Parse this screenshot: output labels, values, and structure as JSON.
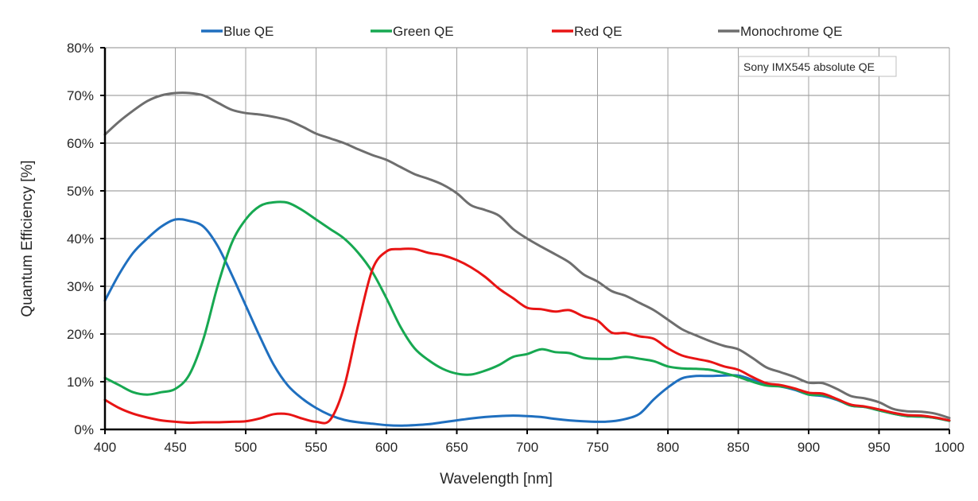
{
  "chart_data": {
    "type": "line",
    "title": "",
    "annotation": "Sony IMX545 absolute QE",
    "xlabel": "Wavelength [nm]",
    "ylabel": "Quantum Efficiency [%]",
    "xlim": [
      400,
      1000
    ],
    "ylim": [
      0,
      80
    ],
    "x_ticks": [
      400,
      450,
      500,
      550,
      600,
      650,
      700,
      750,
      800,
      850,
      900,
      950,
      1000
    ],
    "x_tick_labels": [
      "400",
      "450",
      "500",
      "550",
      "600",
      "650",
      "700",
      "750",
      "800",
      "850",
      "900",
      "950",
      "1000"
    ],
    "y_ticks": [
      0,
      10,
      20,
      30,
      40,
      50,
      60,
      70,
      80
    ],
    "y_tick_labels": [
      "0%",
      "10%",
      "20%",
      "30%",
      "40%",
      "50%",
      "60%",
      "70%",
      "80%"
    ],
    "grid": true,
    "legend_position": "top",
    "x": [
      400,
      410,
      420,
      430,
      440,
      450,
      460,
      470,
      480,
      490,
      500,
      510,
      520,
      530,
      540,
      550,
      560,
      570,
      580,
      590,
      600,
      610,
      620,
      630,
      640,
      650,
      660,
      670,
      680,
      690,
      700,
      710,
      720,
      730,
      740,
      750,
      760,
      770,
      780,
      790,
      800,
      810,
      820,
      830,
      840,
      850,
      860,
      870,
      880,
      890,
      900,
      910,
      920,
      930,
      940,
      950,
      960,
      970,
      980,
      990,
      1000
    ],
    "series": [
      {
        "name": "Blue QE",
        "color": "#1f6fbf",
        "values": [
          27,
          32.5,
          37,
          40,
          42.5,
          44,
          43.7,
          42.5,
          38.5,
          32.5,
          26,
          19.5,
          13.5,
          9.2,
          6.5,
          4.5,
          3,
          2,
          1.5,
          1.2,
          0.9,
          0.8,
          0.9,
          1.1,
          1.5,
          1.9,
          2.3,
          2.6,
          2.8,
          2.9,
          2.8,
          2.6,
          2.2,
          1.9,
          1.7,
          1.6,
          1.7,
          2.2,
          3.3,
          6.3,
          8.8,
          10.7,
          11.2,
          11.2,
          11.3,
          11.3,
          10.4,
          9.3,
          9,
          8.3,
          7.3,
          7,
          6.2,
          5,
          4.7,
          4,
          3.3,
          2.8,
          2.7,
          2.4,
          1.8
        ]
      },
      {
        "name": "Green QE",
        "color": "#17a851",
        "values": [
          10.8,
          9.3,
          7.8,
          7.3,
          7.8,
          8.5,
          11.5,
          19,
          30,
          39,
          44,
          46.8,
          47.6,
          47.5,
          46,
          44,
          42,
          40,
          37,
          33,
          27.5,
          21.5,
          17,
          14.5,
          12.7,
          11.7,
          11.5,
          12.3,
          13.5,
          15.2,
          15.8,
          16.8,
          16.2,
          16,
          15,
          14.8,
          14.8,
          15.2,
          14.8,
          14.3,
          13.2,
          12.8,
          12.7,
          12.5,
          11.8,
          11,
          10,
          9.2,
          9,
          8.5,
          7.3,
          7.2,
          6.3,
          5,
          4.7,
          4,
          3.3,
          2.8,
          2.7,
          2.4,
          1.8
        ]
      },
      {
        "name": "Red QE",
        "color": "#e81414",
        "values": [
          6.2,
          4.5,
          3.3,
          2.5,
          1.9,
          1.6,
          1.4,
          1.5,
          1.5,
          1.6,
          1.7,
          2.3,
          3.2,
          3.2,
          2.3,
          1.6,
          2,
          9,
          22,
          33.5,
          37.3,
          37.8,
          37.8,
          37,
          36.5,
          35.5,
          34,
          32,
          29.5,
          27.5,
          25.5,
          25.2,
          24.7,
          25,
          23.7,
          22.8,
          20.3,
          20.2,
          19.5,
          19,
          17,
          15.5,
          14.8,
          14.2,
          13.2,
          12.5,
          11,
          9.7,
          9.3,
          8.6,
          7.7,
          7.5,
          6.4,
          5.2,
          4.8,
          4.2,
          3.5,
          3,
          2.9,
          2.5,
          1.9
        ]
      },
      {
        "name": "Monochrome QE",
        "color": "#6e6e6e",
        "values": [
          61.8,
          64.5,
          66.8,
          68.8,
          70,
          70.5,
          70.5,
          70,
          68.5,
          67,
          66.3,
          66,
          65.5,
          64.8,
          63.5,
          62,
          61,
          60,
          58.7,
          57.5,
          56.5,
          55,
          53.5,
          52.5,
          51.3,
          49.5,
          47,
          46,
          44.8,
          42,
          40,
          38.3,
          36.7,
          35,
          32.5,
          31,
          29,
          28,
          26.5,
          25,
          23,
          21,
          19.7,
          18.5,
          17.5,
          16.8,
          15,
          13,
          12,
          11,
          9.8,
          9.7,
          8.5,
          7,
          6.5,
          5.7,
          4.3,
          3.8,
          3.7,
          3.3,
          2.4
        ]
      }
    ]
  }
}
